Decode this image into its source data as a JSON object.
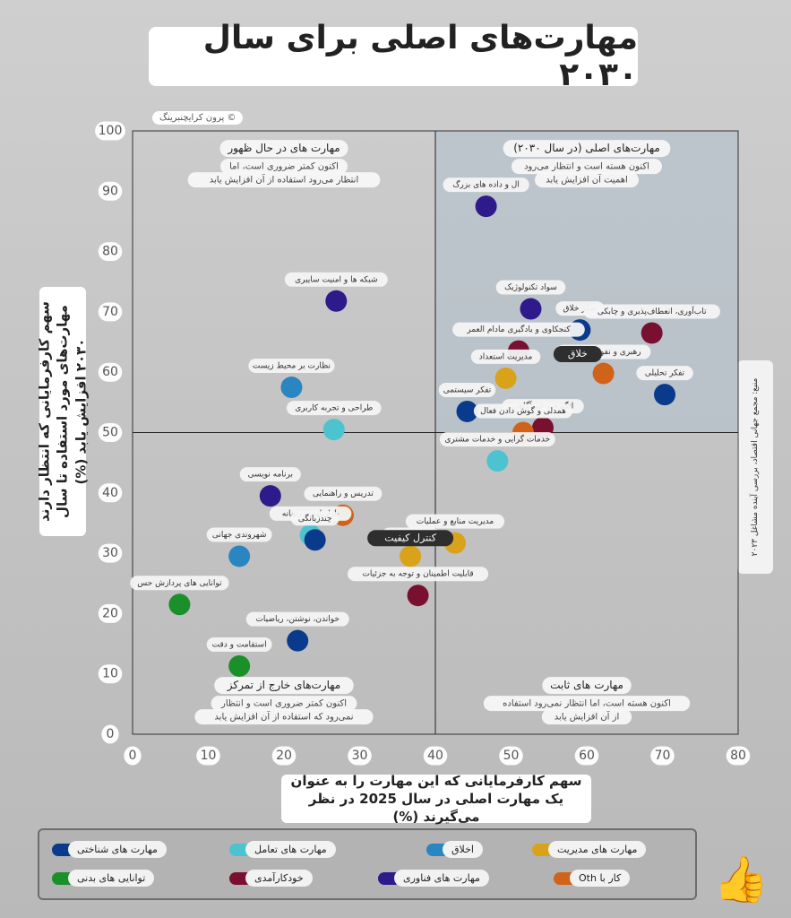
{
  "title": "مهارت‌های اصلی برای سال ۲۰۳۰",
  "source_tag": "پرون کرایچنبرینگ ©",
  "side_note": "منبع: مجمع جهانی اقتصاد، بررسی آینده مشاغل ۲۰۲۳",
  "colors": {
    "cognitive": "#0a3a8c",
    "engagement": "#4ec3d0",
    "ethics": "#2a86c0",
    "management": "#d9a21b",
    "physical": "#1a8f2a",
    "self_efficacy": "#7a1030",
    "technology": "#2e1a8a",
    "working_with_others": "#d0621a",
    "black_pill": "#2e2e2e"
  },
  "chart_data": {
    "type": "scatter",
    "title": "مهارت‌های اصلی برای سال ۲۰۳۰",
    "xlabel": "سهم کارفرمایانی که این مهارت را به عنوان یک مهارت اصلی در سال 2025 در نظر می‌گیرند (%)",
    "ylabel": "سهم کارفرمایانی که انتظار دارند مهارت‌های مورد استفاده تا سال ۲۰۳۰ افزایش یابد (%)",
    "xlim": [
      0,
      80
    ],
    "ylim": [
      0,
      100
    ],
    "xticks": [
      "0",
      "10",
      "20",
      "30",
      "40",
      "50",
      "60",
      "70",
      "80"
    ],
    "yticks": [
      "0",
      "10",
      "20",
      "30",
      "40",
      "50",
      "60",
      "70",
      "80",
      "90",
      "100"
    ],
    "quadrant_split": {
      "x": 40,
      "y": 50
    },
    "grid": false,
    "legend_position": "bottom",
    "quadrants": [
      {
        "title": "مهارت های در حال ظهور",
        "desc_1": "اکنون کمتر ضروری است، اما",
        "desc_2": "انتظار می‌رود استفاده از آن افزایش یابد"
      },
      {
        "title": "مهارت‌های اصلی (در سال ۲۰۳۰)",
        "desc_1": "اکنون هسته است و انتظار می‌رود",
        "desc_2": "اهمیت آن افزایش یابد"
      },
      {
        "title": "مهارت‌های خارج از تمرکز",
        "desc_1": "اکنون کمتر ضروری است و انتظار",
        "desc_2": "نمی‌رود که استفاده از آن افزایش یابد"
      },
      {
        "title": "مهارت های ثابت",
        "desc_1": "اکنون هسته است، اما انتظار نمی‌رود استفاده",
        "desc_2": "از آن افزایش یابد"
      }
    ],
    "series": [
      {
        "name": "مهارت های شناختی",
        "color_key": "cognitive"
      },
      {
        "name": "مهارت های تعامل",
        "color_key": "engagement"
      },
      {
        "name": "اخلاق",
        "color_key": "ethics"
      },
      {
        "name": "مهارت های مدیریت",
        "color_key": "management"
      },
      {
        "name": "توانایی های بدنی",
        "color_key": "physical"
      },
      {
        "name": "خودکارآمدی",
        "color_key": "self_efficacy"
      },
      {
        "name": "مهارت های فناوری",
        "color_key": "technology"
      },
      {
        "name": "کار با Oth",
        "color_key": "working_with_others"
      }
    ],
    "points": [
      {
        "label": "ال و داده های بزرگ",
        "x": 46.7,
        "y": 87.5,
        "series": 6
      },
      {
        "label": "شبکه ها و امنیت سایبری",
        "x": 26.9,
        "y": 71.8,
        "series": 6
      },
      {
        "label": "سواد تکنولوژیک",
        "x": 52.6,
        "y": 70.5,
        "series": 6
      },
      {
        "label": "کنجکاوی و یادگیری مادام العمر",
        "x": 51.0,
        "y": 63.5,
        "series": 5
      },
      {
        "label": "تفکر خلاق",
        "x": 59.1,
        "y": 67.0,
        "series": 0
      },
      {
        "label": "تاب‌آوری، انعطاف‌پذیری و چابکی",
        "x": 68.6,
        "y": 66.5,
        "series": 5
      },
      {
        "label": "مدیریت استعداد",
        "x": 49.3,
        "y": 59.0,
        "series": 3
      },
      {
        "label": "رهبری و نفوذ اجتماعی",
        "x": 62.2,
        "y": 59.8,
        "series": 7
      },
      {
        "label": "تفکر تحلیلی",
        "x": 70.3,
        "y": 56.3,
        "series": 0
      },
      {
        "label": "نظارت بر محیط زیست",
        "x": 21.0,
        "y": 57.5,
        "series": 2
      },
      {
        "label": "تفکر سیستمی",
        "x": 44.2,
        "y": 53.5,
        "series": 0
      },
      {
        "label": "طراحی و تجربه کاربری",
        "x": 26.6,
        "y": 50.5,
        "series": 1
      },
      {
        "label": "انگیزه و خودآگاهی",
        "x": 54.2,
        "y": 50.8,
        "series": 5
      },
      {
        "label": "همدلی و گوش دادن فعال",
        "x": 51.6,
        "y": 50.0,
        "series": 7
      },
      {
        "label": "خدمات گرایی و خدمات مشتری",
        "x": 48.2,
        "y": 45.3,
        "series": 1
      },
      {
        "label": "برنامه نویسی",
        "x": 18.2,
        "y": 39.5,
        "series": 6
      },
      {
        "label": "تدریس و راهنمایی",
        "x": 27.8,
        "y": 36.3,
        "series": 7
      },
      {
        "label": "بازاریابی و رسانه",
        "x": 23.5,
        "y": 33.0,
        "series": 1
      },
      {
        "label": "چندزبانگی",
        "x": 24.1,
        "y": 32.2,
        "series": 0
      },
      {
        "label": "شهروندی جهانی",
        "x": 14.1,
        "y": 29.5,
        "series": 2
      },
      {
        "label": "مدیریت منابع و عملیات",
        "x": 42.6,
        "y": 31.7,
        "series": 3
      },
      {
        "label": "کنترل کیفیت",
        "x": 36.7,
        "y": 29.5,
        "series": 3
      },
      {
        "label": "قابلیت اطمینان و توجه به جزئیات",
        "x": 37.7,
        "y": 23.0,
        "series": 5
      },
      {
        "label": "توانایی های پردازش حس",
        "x": 6.2,
        "y": 21.5,
        "series": 4
      },
      {
        "label": "خواندن، نوشتن، ریاضیات",
        "x": 21.8,
        "y": 15.5,
        "series": 0
      },
      {
        "label": "استقامت و دقت",
        "x": 14.1,
        "y": 11.3,
        "series": 4
      }
    ],
    "annotations": [
      {
        "text": "خلاق",
        "x": 58.8,
        "y": 63.0
      },
      {
        "text": "کنترل کیفیت",
        "x": 36.7,
        "y": 32.5
      }
    ]
  }
}
